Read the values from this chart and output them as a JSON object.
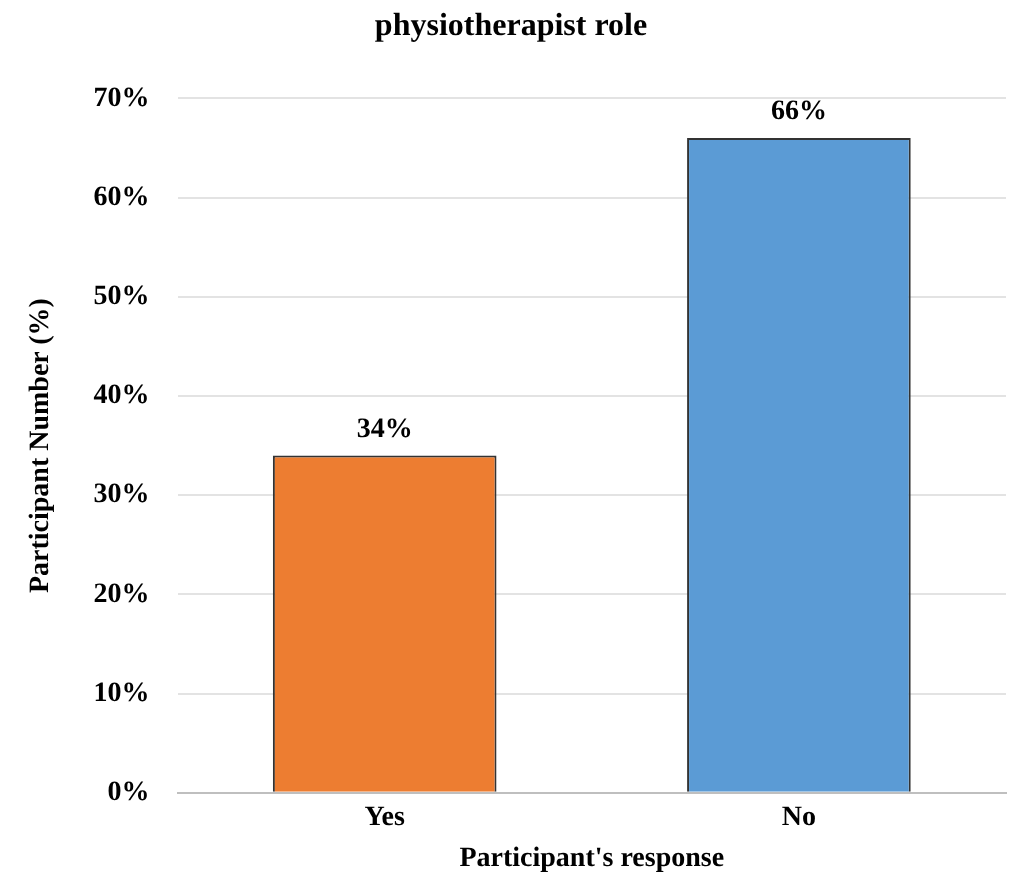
{
  "chart_data": {
    "type": "bar",
    "title": "physiotherapist role",
    "xlabel": "Participant's response",
    "ylabel": "Participant Number (%)",
    "categories": [
      "Yes",
      "No"
    ],
    "values": [
      34,
      66
    ],
    "colors": [
      "#ed7d31",
      "#5b9bd5"
    ],
    "value_labels": [
      "34%",
      "66%"
    ],
    "ylim": [
      0,
      70
    ],
    "yticks": [
      {
        "value": 0,
        "label": "0%"
      },
      {
        "value": 10,
        "label": "10%"
      },
      {
        "value": 20,
        "label": "20%"
      },
      {
        "value": 30,
        "label": "30%"
      },
      {
        "value": 40,
        "label": "40%"
      },
      {
        "value": 50,
        "label": "50%"
      },
      {
        "value": 60,
        "label": "60%"
      },
      {
        "value": 70,
        "label": "70%"
      }
    ],
    "grid": "y",
    "legend": false
  }
}
